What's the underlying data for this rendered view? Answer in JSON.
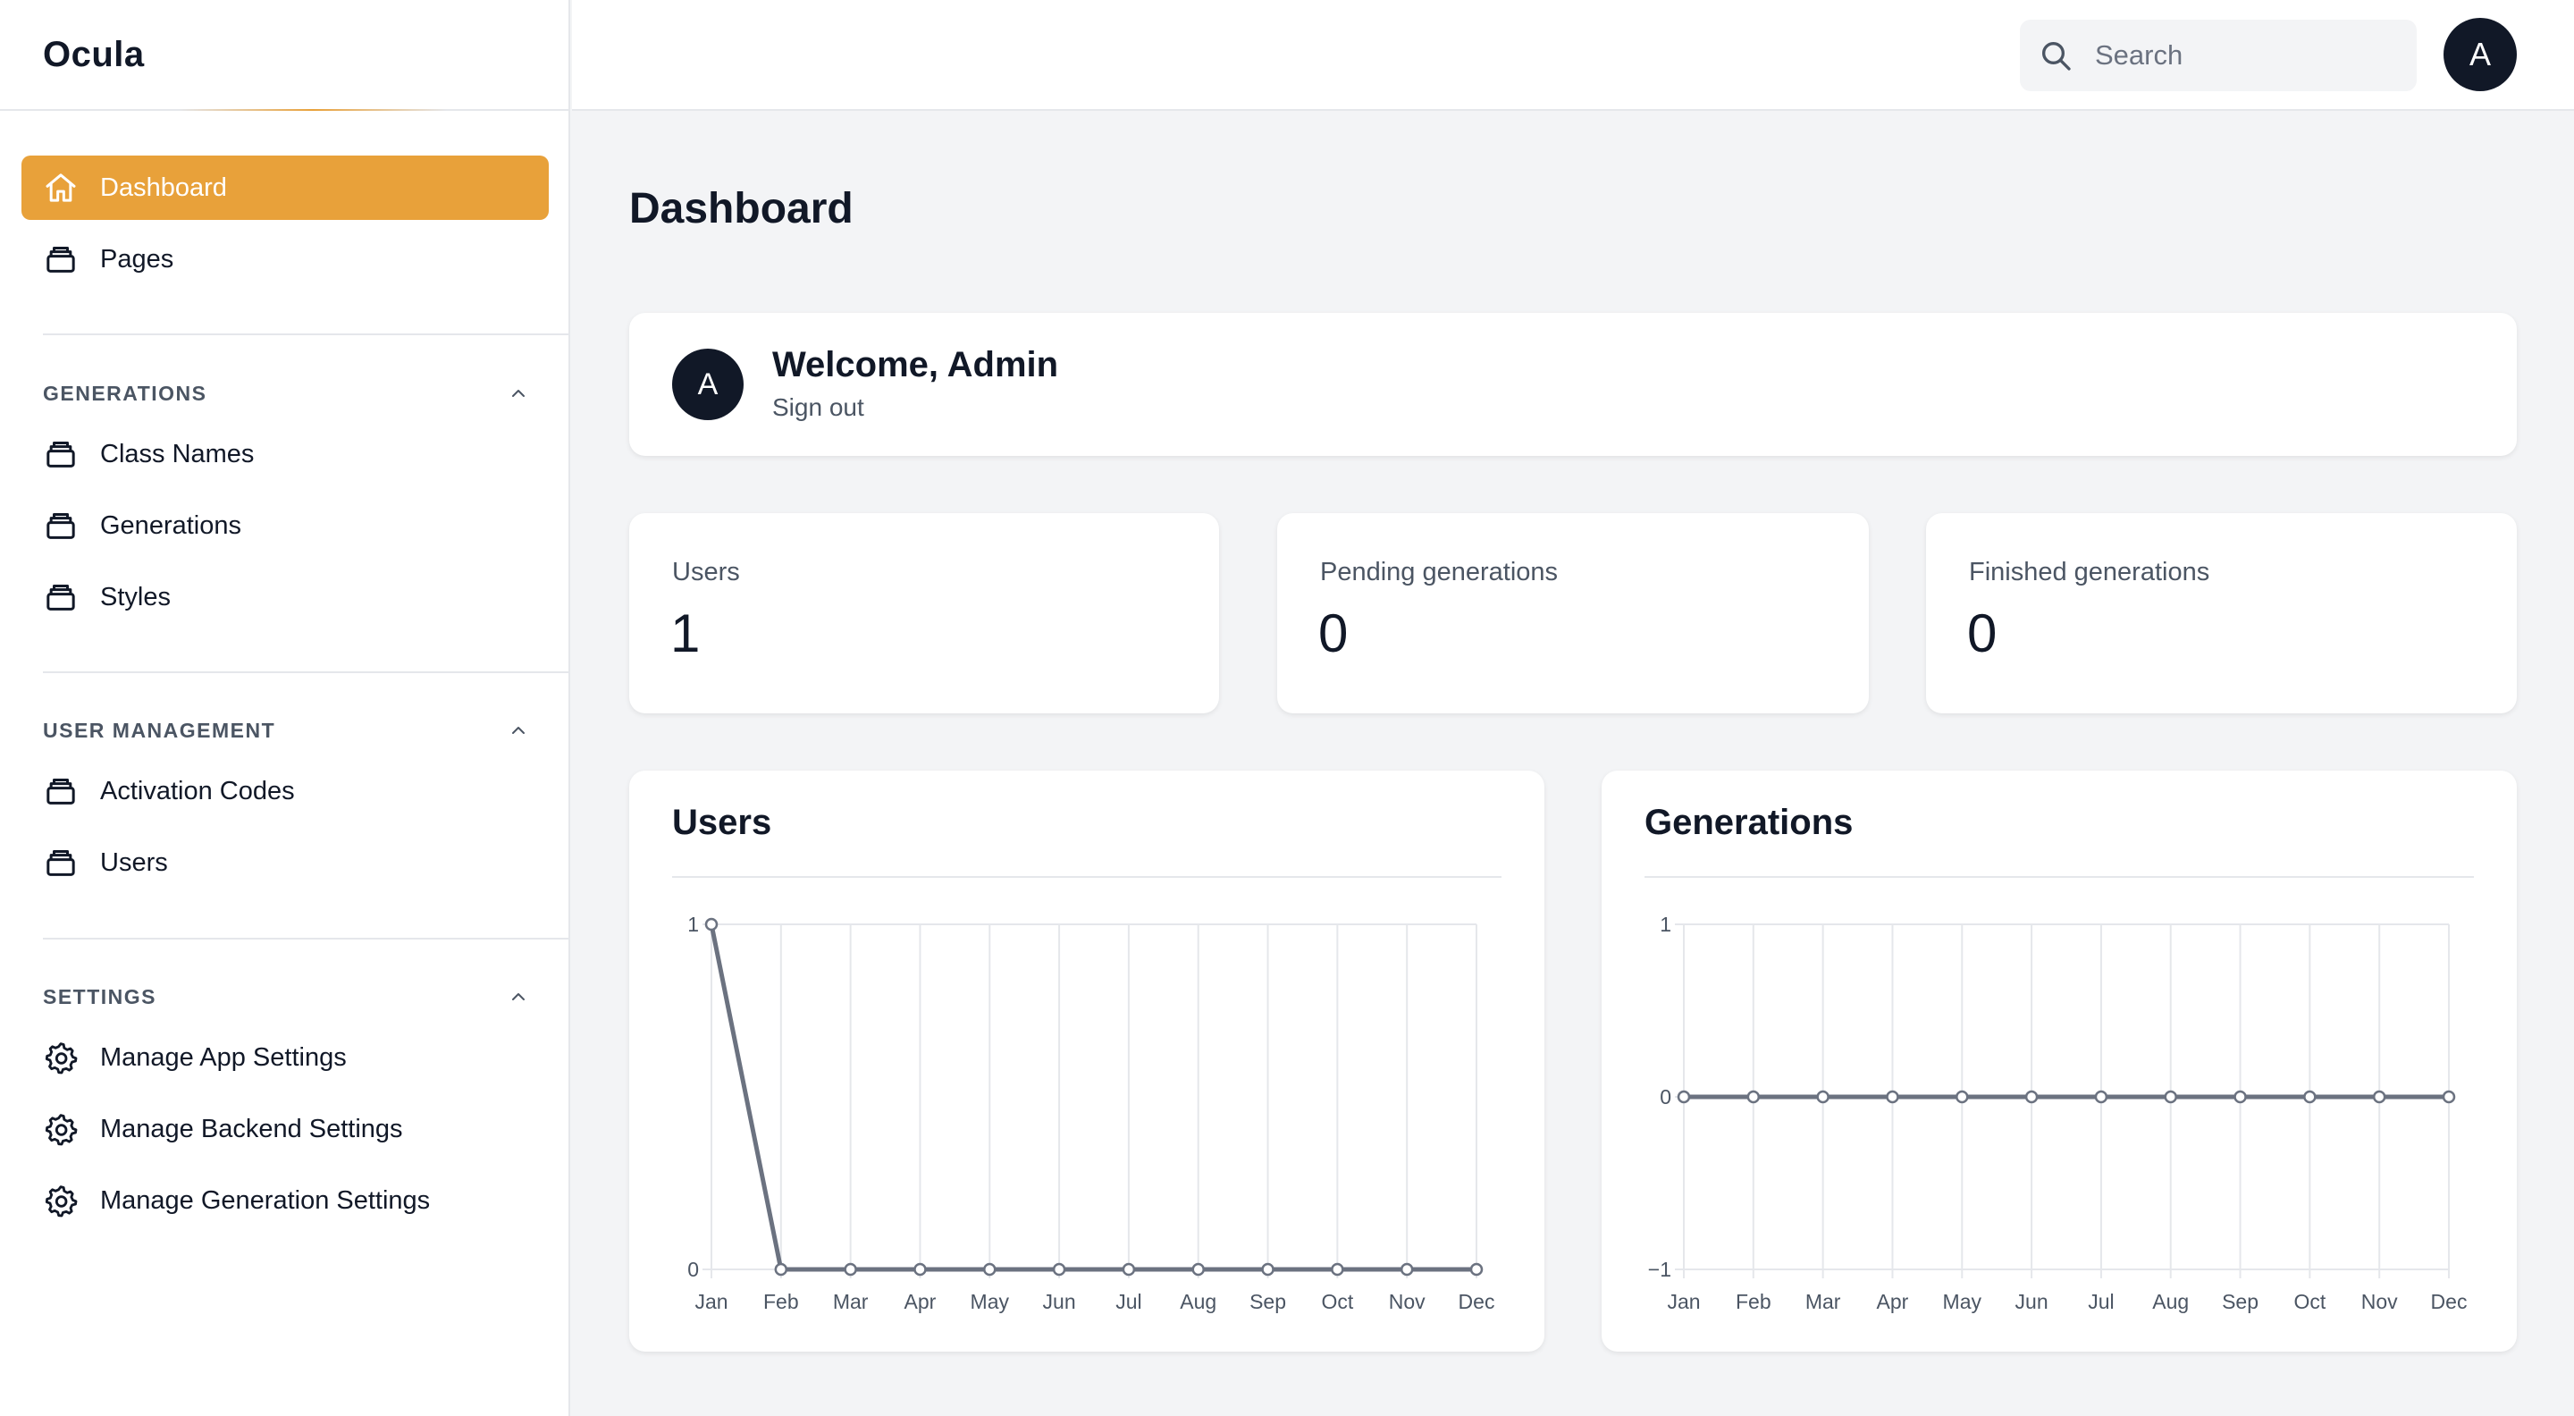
{
  "app": {
    "brand": "Ocula"
  },
  "sidebar": {
    "items": [
      {
        "label": "Dashboard",
        "icon": "home-icon",
        "active": true
      },
      {
        "label": "Pages",
        "icon": "stack-icon"
      }
    ],
    "sections": [
      {
        "title": "GENERATIONS",
        "items": [
          {
            "label": "Class Names",
            "icon": "stack-icon"
          },
          {
            "label": "Generations",
            "icon": "stack-icon"
          },
          {
            "label": "Styles",
            "icon": "stack-icon"
          }
        ]
      },
      {
        "title": "USER MANAGEMENT",
        "items": [
          {
            "label": "Activation Codes",
            "icon": "stack-icon"
          },
          {
            "label": "Users",
            "icon": "stack-icon"
          }
        ]
      },
      {
        "title": "SETTINGS",
        "items": [
          {
            "label": "Manage App Settings",
            "icon": "gear-icon"
          },
          {
            "label": "Manage Backend Settings",
            "icon": "gear-icon"
          },
          {
            "label": "Manage Generation Settings",
            "icon": "gear-icon"
          }
        ]
      }
    ]
  },
  "topbar": {
    "search_placeholder": "Search",
    "avatar_initial": "A"
  },
  "main": {
    "title": "Dashboard",
    "welcome": {
      "avatar_initial": "A",
      "title": "Welcome, Admin",
      "signout": "Sign out"
    },
    "stats": [
      {
        "label": "Users",
        "value": "1"
      },
      {
        "label": "Pending generations",
        "value": "0"
      },
      {
        "label": "Finished generations",
        "value": "0"
      }
    ]
  },
  "colors": {
    "accent": "#e8a13a",
    "dark": "#111827",
    "line": "#6b7280"
  },
  "chart_data": [
    {
      "type": "line",
      "title": "Users",
      "categories": [
        "Jan",
        "Feb",
        "Mar",
        "Apr",
        "May",
        "Jun",
        "Jul",
        "Aug",
        "Sep",
        "Oct",
        "Nov",
        "Dec"
      ],
      "values": [
        1,
        0,
        0,
        0,
        0,
        0,
        0,
        0,
        0,
        0,
        0,
        0
      ],
      "yticks": [
        0,
        1
      ],
      "ylim": [
        0,
        1
      ],
      "grid": true
    },
    {
      "type": "line",
      "title": "Generations",
      "categories": [
        "Jan",
        "Feb",
        "Mar",
        "Apr",
        "May",
        "Jun",
        "Jul",
        "Aug",
        "Sep",
        "Oct",
        "Nov",
        "Dec"
      ],
      "values": [
        0,
        0,
        0,
        0,
        0,
        0,
        0,
        0,
        0,
        0,
        0,
        0
      ],
      "yticks": [
        -1,
        0,
        1
      ],
      "ylim": [
        -1,
        1
      ],
      "grid": true
    }
  ]
}
